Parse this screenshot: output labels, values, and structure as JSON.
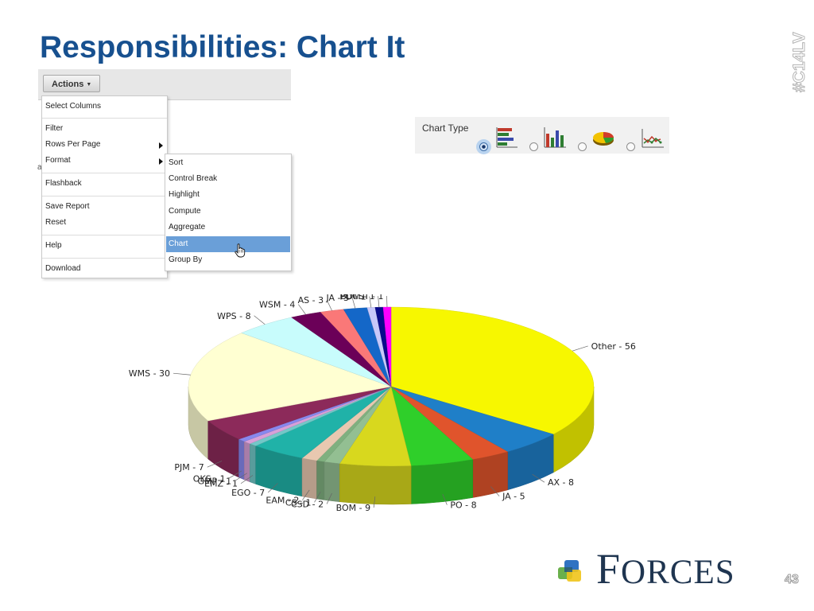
{
  "slide": {
    "title": "Responsibilities: Chart It",
    "hashtag": "#C14LV",
    "slide_number": "43"
  },
  "toolbar": {
    "actions_label": "Actions"
  },
  "actions_menu": {
    "items": [
      "Select Columns",
      "Filter",
      "Rows Per Page",
      "Format",
      "Flashback",
      "Save Report",
      "Reset",
      "Help",
      "Download"
    ],
    "stub_text": "a"
  },
  "format_submenu": {
    "items": [
      "Sort",
      "Control Break",
      "Highlight",
      "Compute",
      "Aggregate",
      "Chart",
      "Group By"
    ],
    "selected": "Chart"
  },
  "chart_type_panel": {
    "label": "Chart Type",
    "options": [
      "horizontal-bar",
      "vertical-bar",
      "pie",
      "line"
    ],
    "selected": "horizontal-bar"
  },
  "chart_data": {
    "type": "pie",
    "title": "",
    "slices": [
      {
        "label": "Other",
        "value": 56,
        "color": "#f7f700"
      },
      {
        "label": "AX",
        "value": 8,
        "color": "#1f7fc8"
      },
      {
        "label": "JA",
        "value": 5,
        "color": "#e0542c"
      },
      {
        "label": "PO",
        "value": 8,
        "color": "#2fcf2a"
      },
      {
        "label": "BOM",
        "value": 9,
        "color": "#d8d81e"
      },
      {
        "label": "CSD",
        "value": 2,
        "color": "#93bf92"
      },
      {
        "label": "CS",
        "value": 1,
        "color": "#7fb07f"
      },
      {
        "label": "EAM",
        "value": 2,
        "color": "#e8c8b0"
      },
      {
        "label": "EGO",
        "value": 7,
        "color": "#20b2a8"
      },
      {
        "label": "EMZ",
        "value": 1,
        "color": "#72c8c8"
      },
      {
        "label": "GMP",
        "value": 1,
        "color": "#d8a0d8"
      },
      {
        "label": "OKS",
        "value": 1,
        "color": "#8888ee"
      },
      {
        "label": "PJM",
        "value": 7,
        "color": "#8c2a5a"
      },
      {
        "label": "WMS",
        "value": 30,
        "color": "#ffffd2"
      },
      {
        "label": "WPS",
        "value": 8,
        "color": "#c8fcfc"
      },
      {
        "label": "WSM",
        "value": 4,
        "color": "#6b0058"
      },
      {
        "label": "AS",
        "value": 3,
        "color": "#fa7878"
      },
      {
        "label": "JA",
        "value": 3,
        "color": "#1467c8"
      },
      {
        "label": "PO",
        "value": 1,
        "color": "#c8c8fa"
      },
      {
        "label": "BOM",
        "value": 1,
        "color": "#0a0a8c"
      },
      {
        "label": "CST",
        "value": 1,
        "color": "#ff00ff"
      }
    ]
  },
  "logo": {
    "text": "Forces"
  }
}
